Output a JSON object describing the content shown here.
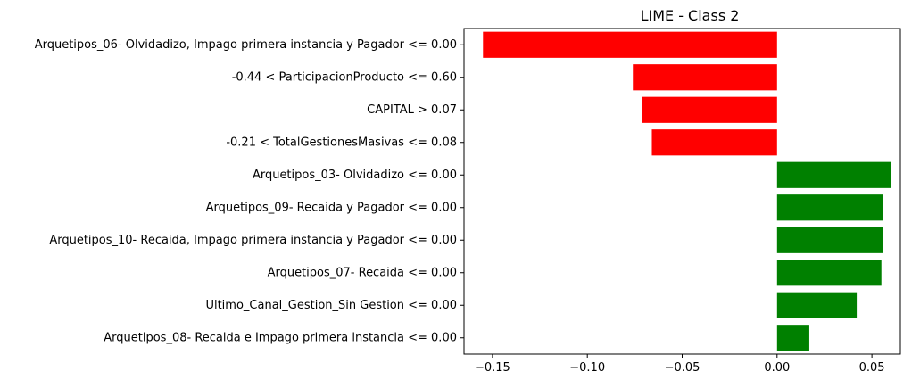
{
  "chart_data": {
    "type": "bar",
    "orientation": "horizontal",
    "title": "LIME - Class 2",
    "xlabel": "",
    "ylabel": "",
    "xlim": [
      -0.165,
      0.065
    ],
    "xticks": [
      -0.15,
      -0.1,
      -0.05,
      0.0,
      0.05
    ],
    "xtick_labels": [
      "−0.15",
      "−0.10",
      "−0.05",
      "0.00",
      "0.05"
    ],
    "grid": false,
    "colors": {
      "negative": "#ff0000",
      "positive": "#008000"
    },
    "categories": [
      "Arquetipos_06- Olvidadizo, Impago primera instancia y Pagador <= 0.00",
      "-0.44 < ParticipacionProducto <= 0.60",
      "CAPITAL > 0.07",
      "-0.21 < TotalGestionesMasivas <= 0.08",
      "Arquetipos_03- Olvidadizo <= 0.00",
      "Arquetipos_09- Recaida y Pagador <= 0.00",
      "Arquetipos_10- Recaida, Impago primera instancia y Pagador <= 0.00",
      "Arquetipos_07- Recaida <= 0.00",
      "Ultimo_Canal_Gestion_Sin Gestion <= 0.00",
      "Arquetipos_08- Recaida e Impago primera instancia <= 0.00"
    ],
    "values": [
      -0.155,
      -0.076,
      -0.071,
      -0.066,
      0.06,
      0.056,
      0.056,
      0.055,
      0.042,
      0.017
    ]
  }
}
